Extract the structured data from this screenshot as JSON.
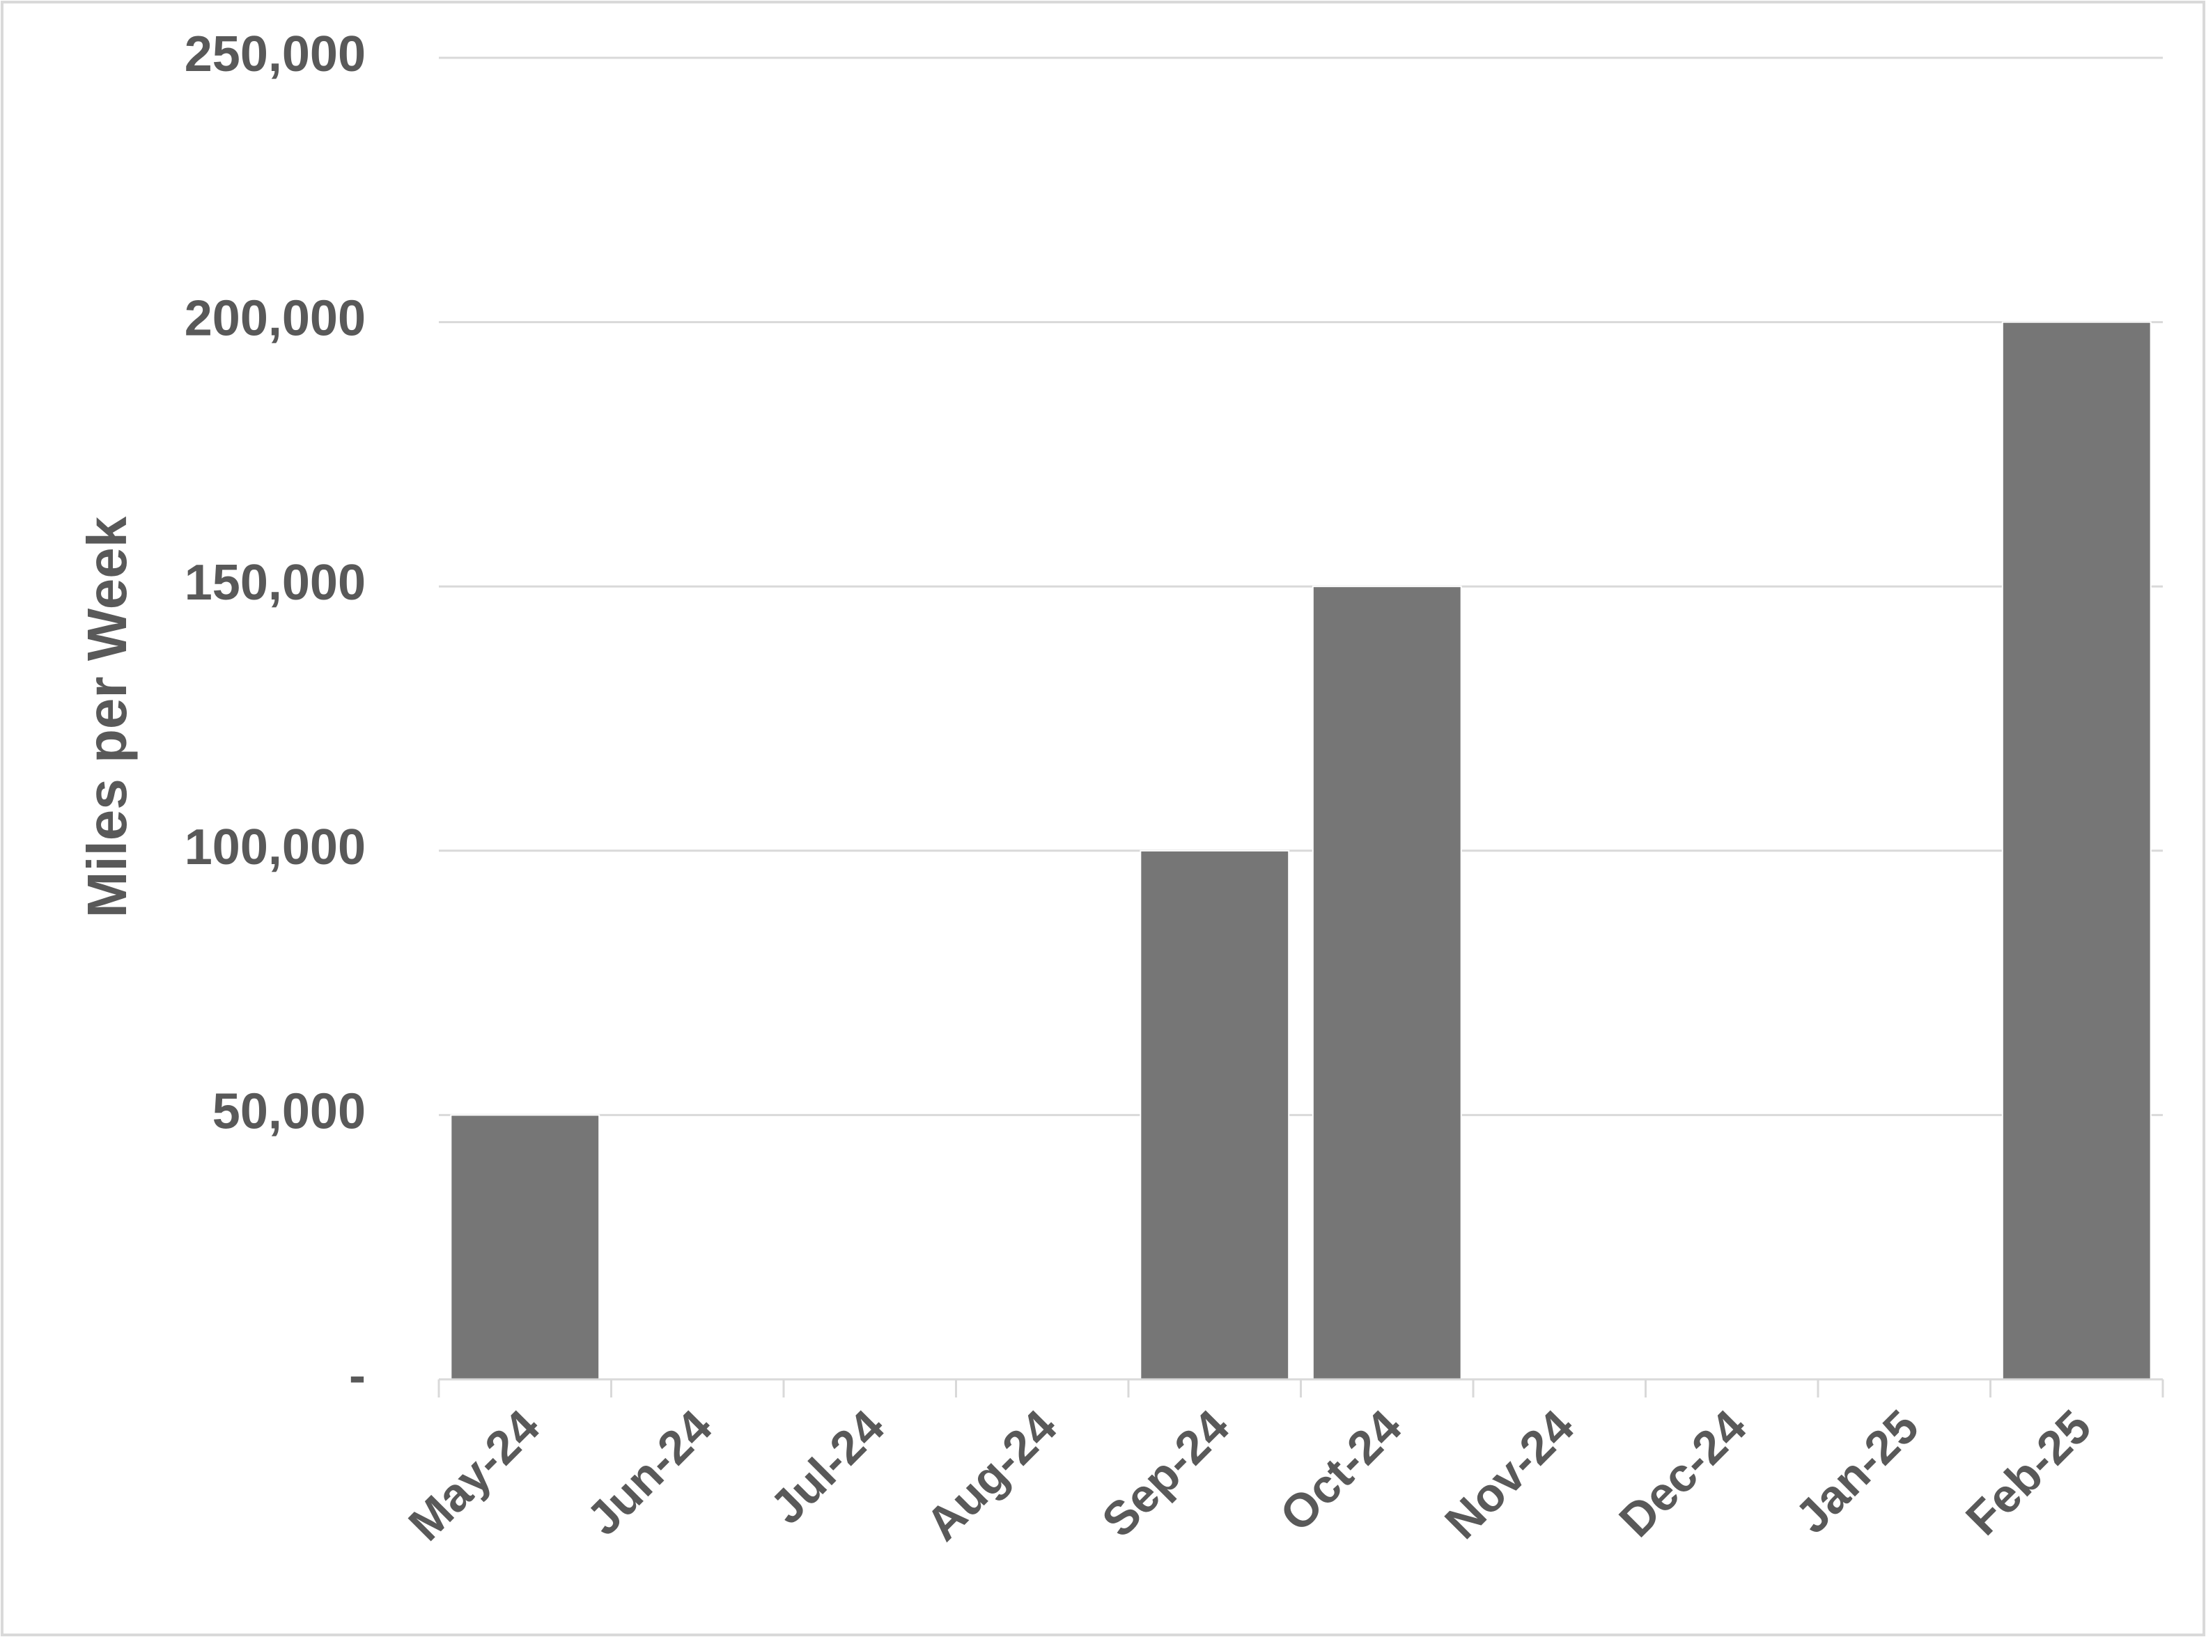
{
  "chart_data": {
    "type": "bar",
    "y_label": "Miles per Week",
    "categories": [
      "May-24",
      "Jun-24",
      "Jul-24",
      "Aug-24",
      "Sep-24",
      "Oct-24",
      "Nov-24",
      "Dec-24",
      "Jan-25",
      "Feb-25"
    ],
    "values": [
      50000,
      0,
      0,
      0,
      100000,
      150000,
      0,
      0,
      0,
      200000
    ],
    "color": "#767676",
    "ylim": [
      0,
      250000
    ],
    "yticks": [
      {
        "value": 0,
        "label": "-"
      },
      {
        "value": 50000,
        "label": "50,000"
      },
      {
        "value": 100000,
        "label": "100,000"
      },
      {
        "value": 150000,
        "label": "150,000"
      },
      {
        "value": 200000,
        "label": "200,000"
      },
      {
        "value": 250000,
        "label": "250,000"
      }
    ],
    "grid": true
  }
}
